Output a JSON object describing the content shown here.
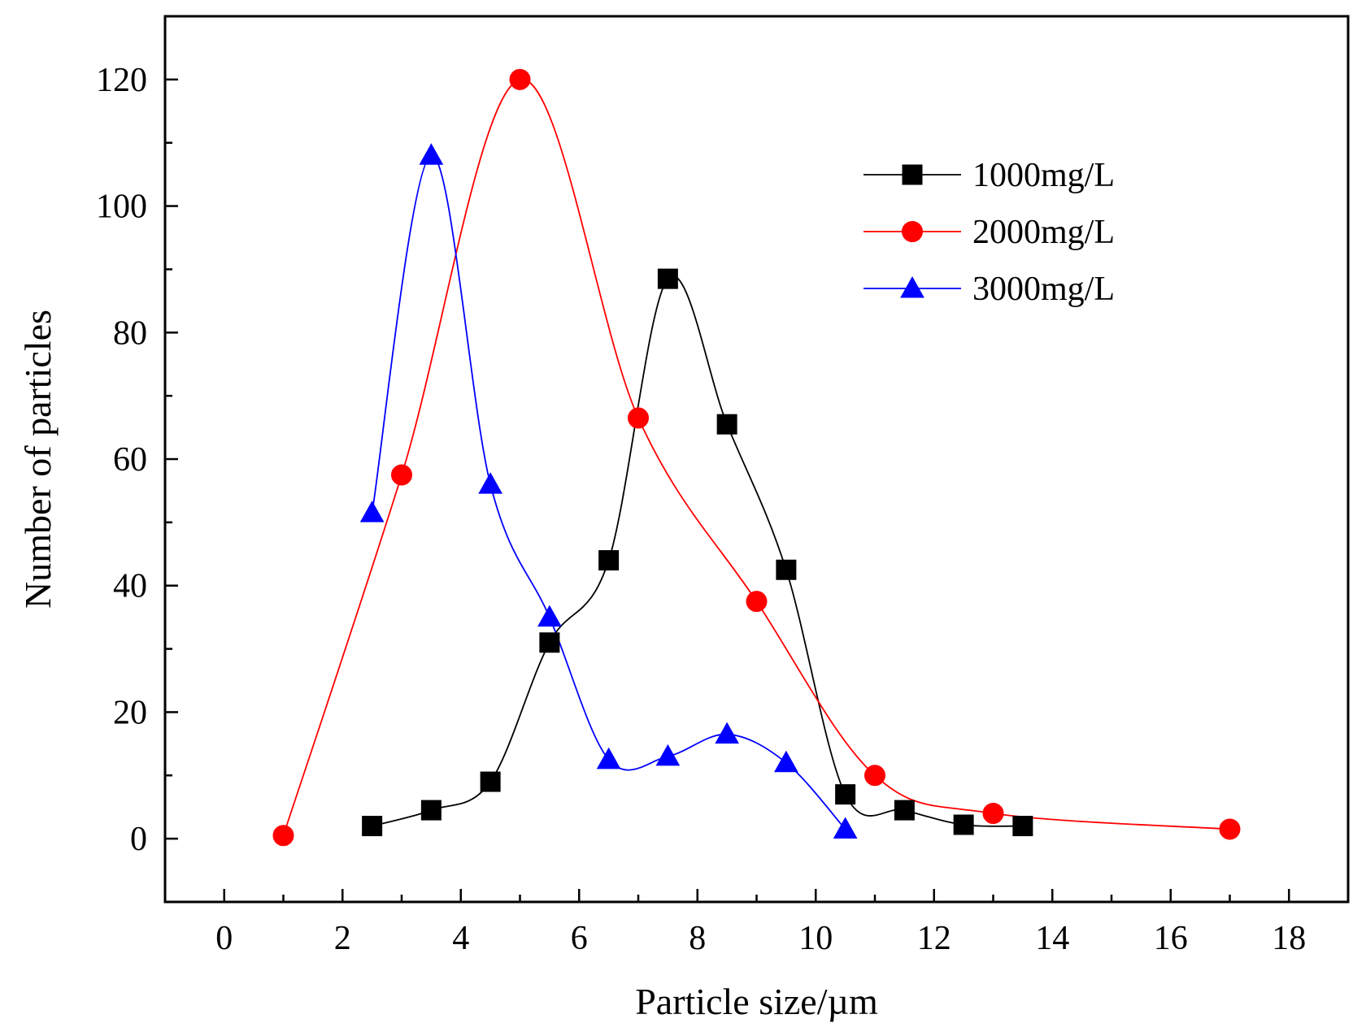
{
  "chart_data": {
    "type": "line",
    "title": "",
    "xlabel": "Particle size/µm",
    "ylabel": "Number of particles",
    "xlim": [
      -1,
      19
    ],
    "ylim": [
      -10,
      130
    ],
    "xticks": [
      0,
      2,
      4,
      6,
      8,
      10,
      12,
      14,
      16,
      18
    ],
    "yticks": [
      0,
      20,
      40,
      60,
      80,
      100,
      120
    ],
    "grid": false,
    "legend_position": "top-right",
    "series": [
      {
        "name": "1000mg/L",
        "color": "#000000",
        "marker": "square",
        "x": [
          2.5,
          3.5,
          4.5,
          5.5,
          6.5,
          7.5,
          8.5,
          9.5,
          10.5,
          11.5,
          12.5,
          13.5
        ],
        "y": [
          2,
          4.5,
          9,
          31,
          44,
          88.5,
          65.5,
          42.5,
          7,
          4.5,
          2.2,
          2
        ]
      },
      {
        "name": "2000mg/L",
        "color": "#ff0000",
        "marker": "circle",
        "x": [
          1,
          3,
          5,
          7,
          9,
          11,
          13,
          17
        ],
        "y": [
          0.5,
          57.5,
          120,
          66.5,
          37.5,
          10,
          4,
          1.5
        ]
      },
      {
        "name": "3000mg/L",
        "color": "#0000ff",
        "marker": "triangle",
        "x": [
          2.5,
          3.5,
          4.5,
          5.5,
          6.5,
          7.5,
          8.5,
          9.5,
          10.5
        ],
        "y": [
          51.5,
          108,
          56,
          35,
          12.5,
          13,
          16.5,
          12,
          1.5
        ]
      }
    ]
  }
}
